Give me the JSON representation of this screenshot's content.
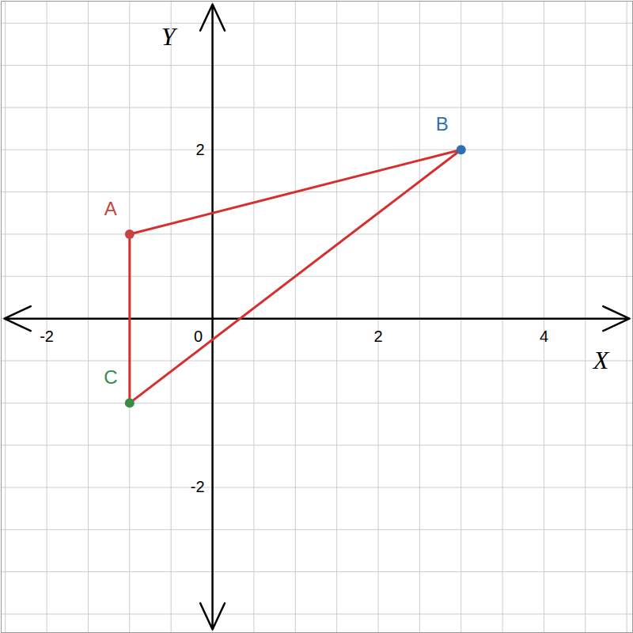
{
  "chart_data": {
    "type": "polygon",
    "categories": [
      "A",
      "B",
      "C"
    ],
    "x": [
      -1,
      3,
      -1
    ],
    "values": [
      1,
      2,
      -1
    ],
    "colors": [
      "#c74440",
      "#2d70b3",
      "#388c46"
    ],
    "color": "#d62f2f",
    "x_label": "X",
    "y_label": "Y",
    "xlim": [
      -2.55,
      5.07
    ],
    "ylim": [
      -3.72,
      3.76
    ],
    "xticks": [
      -2,
      0,
      2,
      4
    ],
    "yticks": [
      -2,
      2
    ],
    "grid": true
  }
}
